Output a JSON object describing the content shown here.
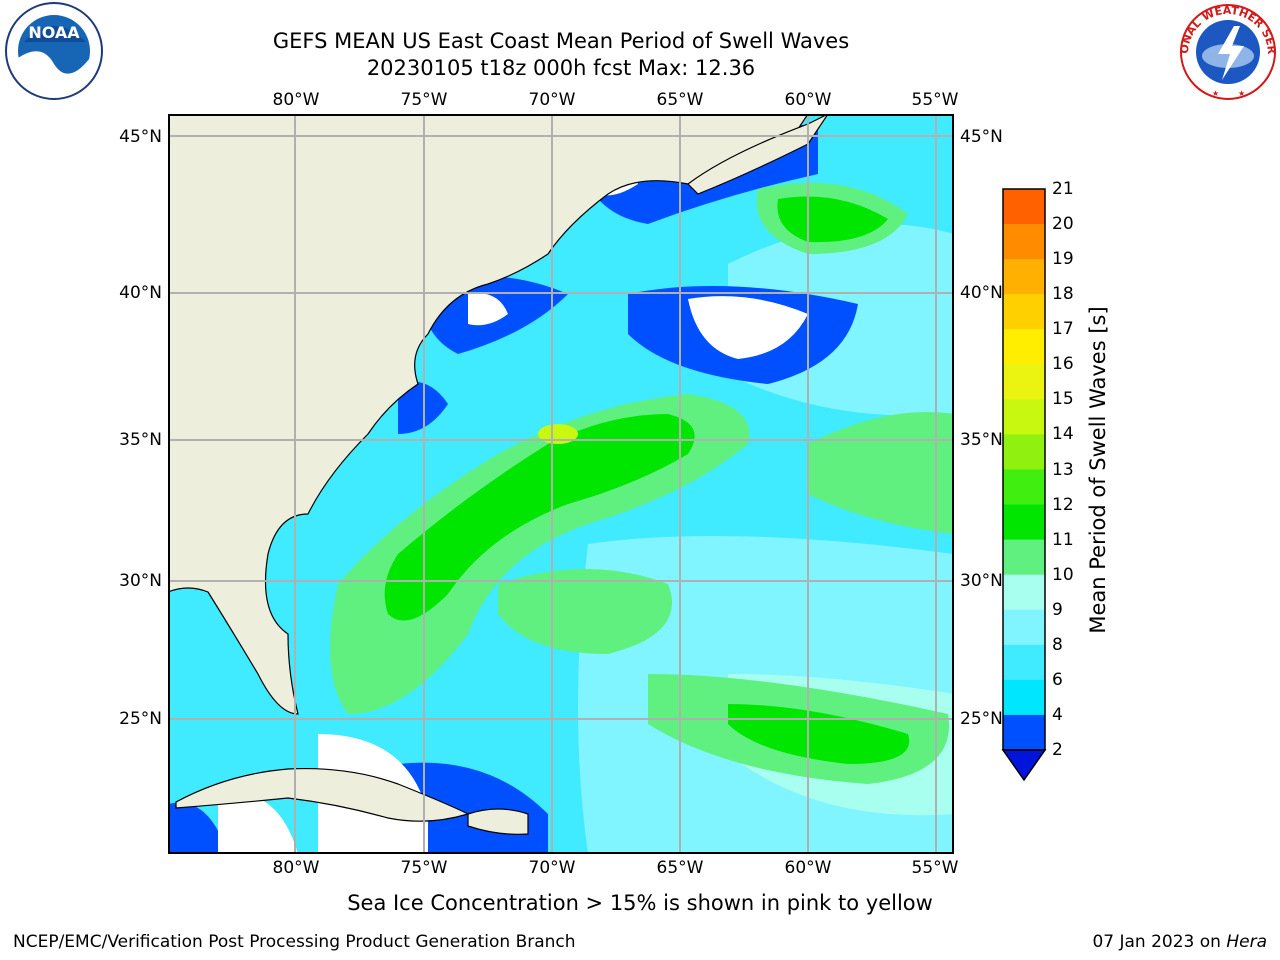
{
  "title_line1": "GEFS MEAN US East Coast Mean Period of Swell Waves",
  "title_line2": "20230105 t18z 000h fcst   Max: 12.36",
  "logos": {
    "left": "noaa-logo",
    "right": "national-weather-service-logo",
    "noaa_text": "NOAA",
    "nws_text": "NATIONAL WEATHER SERVICE"
  },
  "axes": {
    "lon_labels": [
      "80°W",
      "75°W",
      "70°W",
      "65°W",
      "60°W",
      "55°W"
    ],
    "lat_labels": [
      "45°N",
      "40°N",
      "35°N",
      "30°N",
      "25°N"
    ],
    "lon_range": [
      -85,
      -54.5
    ],
    "lat_range": [
      20.5,
      46
    ],
    "grid": true
  },
  "colorbar": {
    "label": "Mean Period of Swell Waves [s]",
    "ticks": [
      "21",
      "20",
      "19",
      "18",
      "17",
      "16",
      "15",
      "14",
      "13",
      "12",
      "11",
      "10",
      "9",
      "8",
      "6",
      "4",
      "2"
    ],
    "colors": [
      "#0050ff",
      "#00e6ff",
      "#40eaff",
      "#80f4ff",
      "#a8fff0",
      "#60f080",
      "#00e600",
      "#40ee10",
      "#90f010",
      "#c8f810",
      "#eaf410",
      "#ffee00",
      "#ffd000",
      "#ffb000",
      "#ff8c00",
      "#ff6000",
      "#ff3800",
      "#ff0000"
    ],
    "extend_below_color": "#0014dc"
  },
  "colors": {
    "land": "#eeeedc",
    "nodata": "#ffffff",
    "grid": "#b0b0b0",
    "coast": "#000000"
  },
  "note": "Sea Ice Concentration > 15% is shown in pink to yellow",
  "footer_left": "NCEP/EMC/Verification Post Processing Product Generation Branch",
  "footer_date": "07 Jan 2023 on",
  "footer_host": "Hera"
}
